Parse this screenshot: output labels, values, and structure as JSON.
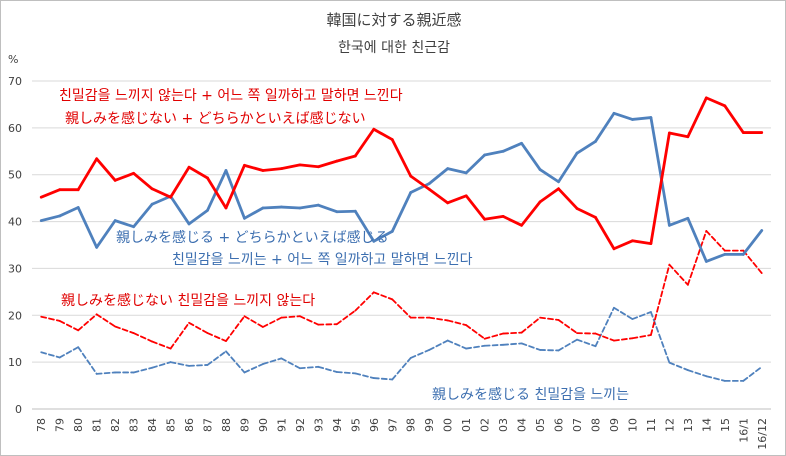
{
  "chart_data": {
    "type": "line",
    "title": "韓国に対する親近感",
    "subtitle": "한국에 대한 친근감",
    "ylabel": "%",
    "ylim": [
      0,
      70
    ],
    "yticks": [
      0,
      10,
      20,
      30,
      40,
      50,
      60,
      70
    ],
    "grid": true,
    "categories": [
      "78",
      "79",
      "80",
      "81",
      "82",
      "83",
      "84",
      "85",
      "86",
      "87",
      "88",
      "89",
      "90",
      "91",
      "92",
      "93",
      "94",
      "95",
      "96",
      "97",
      "98",
      "99",
      "00",
      "01",
      "02",
      "03",
      "04",
      "05",
      "06",
      "07",
      "08",
      "09",
      "10",
      "11",
      "12",
      "13",
      "14",
      "15",
      "16/1",
      "16/12"
    ],
    "series": [
      {
        "name": "親しみを感じない + どちらかといえば感じない",
        "color": "#ff0000",
        "style": "solid",
        "values": [
          45.2,
          46.8,
          46.8,
          53.4,
          48.8,
          50.3,
          47.0,
          45.2,
          51.6,
          49.3,
          42.9,
          52.0,
          50.9,
          51.3,
          52.1,
          51.7,
          52.9,
          54.0,
          59.7,
          57.5,
          49.7,
          46.9,
          44.0,
          45.5,
          40.5,
          41.1,
          39.2,
          44.2,
          47.0,
          42.8,
          40.9,
          34.2,
          35.9,
          35.3,
          58.9,
          58.1,
          66.4,
          64.7,
          59.0,
          59.0
        ]
      },
      {
        "name": "親しみを感じる + どちらかといえば感じる",
        "color": "#4f81bd",
        "style": "solid",
        "values": [
          40.2,
          41.2,
          43.0,
          34.5,
          40.2,
          38.9,
          43.7,
          45.4,
          39.5,
          42.4,
          50.9,
          40.7,
          42.9,
          43.1,
          42.9,
          43.5,
          42.1,
          42.2,
          35.8,
          37.9,
          46.2,
          48.1,
          51.3,
          50.4,
          54.2,
          55.0,
          56.7,
          51.1,
          48.5,
          54.6,
          57.1,
          63.1,
          61.8,
          62.2,
          39.2,
          40.7,
          31.5,
          33.0,
          33.0,
          38.1
        ]
      },
      {
        "name": "親しみを感じない",
        "color": "#ff0000",
        "style": "dashed",
        "values": [
          19.7,
          18.8,
          16.8,
          20.2,
          17.6,
          16.2,
          14.4,
          12.9,
          18.4,
          16.2,
          14.5,
          19.8,
          17.5,
          19.5,
          19.8,
          18.0,
          18.1,
          21.0,
          24.9,
          23.4,
          19.5,
          19.5,
          18.9,
          17.9,
          15.0,
          16.1,
          16.3,
          19.5,
          19.0,
          16.2,
          16.1,
          14.6,
          15.1,
          15.8,
          30.8,
          26.5,
          38.0,
          33.8,
          33.8,
          29.0
        ]
      },
      {
        "name": "親しみを感じる",
        "color": "#4f81bd",
        "style": "dashed",
        "values": [
          12.1,
          11.0,
          13.2,
          7.5,
          7.8,
          7.8,
          8.8,
          10.0,
          9.2,
          9.4,
          12.3,
          7.8,
          9.6,
          10.8,
          8.7,
          9.0,
          7.9,
          7.6,
          6.6,
          6.3,
          10.9,
          12.6,
          14.6,
          12.9,
          13.5,
          13.7,
          14.0,
          12.6,
          12.5,
          14.8,
          13.4,
          21.6,
          19.2,
          20.7,
          9.9,
          8.3,
          7.0,
          6.0,
          6.0,
          9.0
        ]
      }
    ],
    "annotations": [
      {
        "text": "친밀감을 느끼지 않는다 + 어느 쪽 일까하고 말하면 느낀다",
        "color": "#e00000"
      },
      {
        "text": "親しみを感じない + どちらかといえば感じない",
        "color": "#e00000"
      },
      {
        "text": "親しみを感じる + どちらかといえば感じる",
        "color": "#3d6fb0"
      },
      {
        "text": "친밀감을 느끼는 + 어느 쪽 일까하고 말하면 느낀다",
        "color": "#3d6fb0"
      },
      {
        "text": "親しみを感じない 친밀감을 느끼지 않는다",
        "color": "#e00000"
      },
      {
        "text": "親しみを感じる 친밀감을 느끼는",
        "color": "#3d6fb0"
      }
    ]
  }
}
